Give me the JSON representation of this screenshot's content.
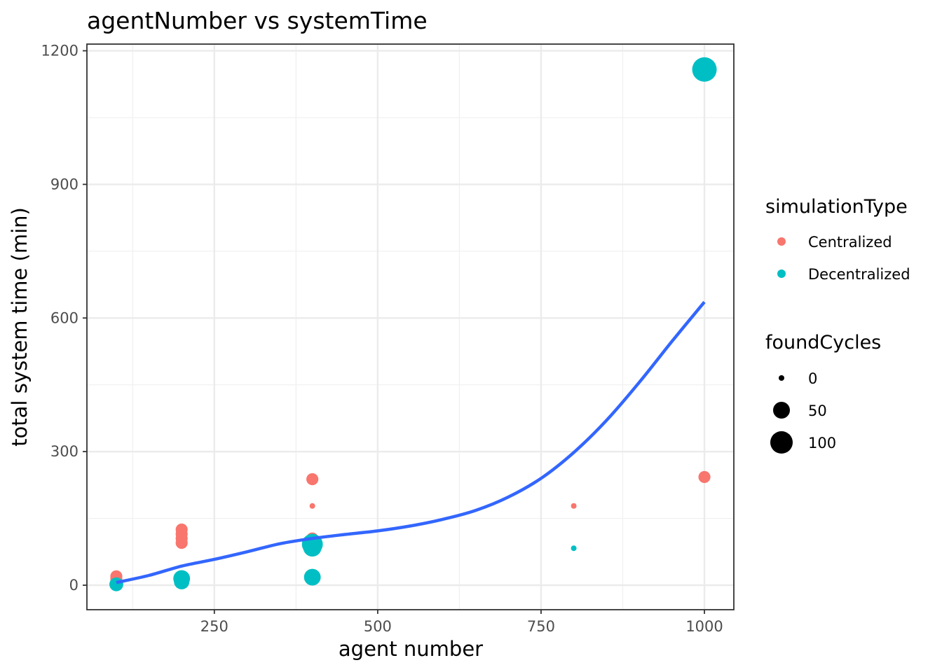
{
  "chart_data": {
    "type": "scatter",
    "title": "agentNumber vs systemTime",
    "xlabel": "agent number",
    "ylabel": "total system time (min)",
    "xlim": [
      55,
      1045
    ],
    "ylim": [
      -55,
      1215
    ],
    "x_ticks": [
      250,
      500,
      750,
      1000
    ],
    "x_minor_ticks": [
      125,
      375,
      625,
      875
    ],
    "y_ticks": [
      0,
      300,
      600,
      900,
      1200
    ],
    "y_minor_ticks": [
      150,
      450,
      750,
      1050
    ],
    "grid": true,
    "legend_position": "right",
    "color_legend": {
      "title": "simulationType",
      "entries": [
        {
          "name": "Centralized",
          "color": "#F8766D"
        },
        {
          "name": "Decentralized",
          "color": "#00BFC4"
        }
      ]
    },
    "size_legend": {
      "title": "foundCycles",
      "entries": [
        0,
        50,
        100
      ]
    },
    "series": [
      {
        "name": "Centralized",
        "color": "#F8766D",
        "points": [
          {
            "x": 100,
            "y": 20,
            "size": 15
          },
          {
            "x": 100,
            "y": 14,
            "size": 15
          },
          {
            "x": 200,
            "y": 125,
            "size": 15
          },
          {
            "x": 200,
            "y": 115,
            "size": 15
          },
          {
            "x": 200,
            "y": 105,
            "size": 15
          },
          {
            "x": 200,
            "y": 95,
            "size": 15
          },
          {
            "x": 400,
            "y": 238,
            "size": 15
          },
          {
            "x": 400,
            "y": 178,
            "size": 0
          },
          {
            "x": 400,
            "y": 105,
            "size": 15
          },
          {
            "x": 800,
            "y": 178,
            "size": 0
          },
          {
            "x": 1000,
            "y": 243,
            "size": 15
          }
        ]
      },
      {
        "name": "Decentralized",
        "color": "#00BFC4",
        "points": [
          {
            "x": 100,
            "y": 2,
            "size": 25
          },
          {
            "x": 200,
            "y": 15,
            "size": 45
          },
          {
            "x": 200,
            "y": 8,
            "size": 35
          },
          {
            "x": 400,
            "y": 92,
            "size": 85
          },
          {
            "x": 400,
            "y": 85,
            "size": 60
          },
          {
            "x": 400,
            "y": 18,
            "size": 45
          },
          {
            "x": 800,
            "y": 83,
            "size": 0
          },
          {
            "x": 1000,
            "y": 1158,
            "size": 130
          }
        ]
      }
    ],
    "smooth": {
      "color": "#3366FF",
      "x": [
        100,
        150,
        200,
        250,
        300,
        350,
        400,
        450,
        500,
        550,
        600,
        650,
        700,
        750,
        800,
        850,
        900,
        950,
        1000
      ],
      "y": [
        6,
        22,
        43,
        58,
        75,
        93,
        105,
        114,
        122,
        133,
        148,
        168,
        198,
        240,
        298,
        370,
        455,
        547,
        636
      ]
    }
  }
}
